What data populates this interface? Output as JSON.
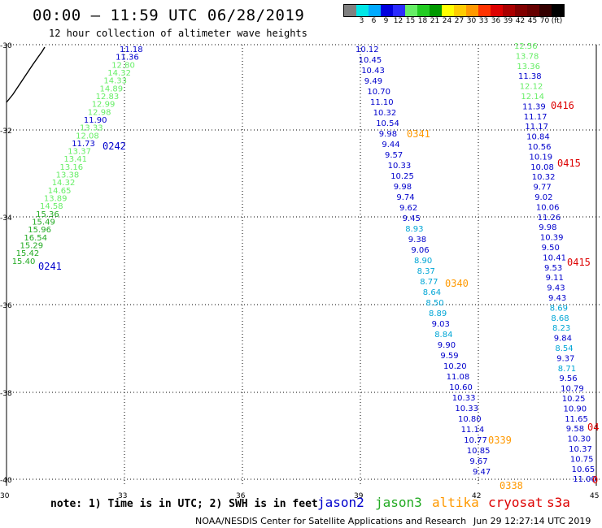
{
  "header": {
    "title": "00:00 – 11:59 UTC 06/28/2019",
    "subtitle": "12 hour collection of altimeter wave heights"
  },
  "legend": {
    "items": [
      {
        "label": "",
        "color": "#808080"
      },
      {
        "label": "3",
        "color": "#00e6e6"
      },
      {
        "label": "6",
        "color": "#00aaff"
      },
      {
        "label": "9",
        "color": "#0000dd"
      },
      {
        "label": "12",
        "color": "#2b2bff"
      },
      {
        "label": "15",
        "color": "#66ee66"
      },
      {
        "label": "18",
        "color": "#22cc22"
      },
      {
        "label": "21",
        "color": "#009900"
      },
      {
        "label": "24",
        "color": "#ffff00"
      },
      {
        "label": "27",
        "color": "#ffcc00"
      },
      {
        "label": "30",
        "color": "#ff9900"
      },
      {
        "label": "33",
        "color": "#ff3300"
      },
      {
        "label": "36",
        "color": "#dd0000"
      },
      {
        "label": "39",
        "color": "#aa0000"
      },
      {
        "label": "42",
        "color": "#800000"
      },
      {
        "label": "45",
        "color": "#660000"
      },
      {
        "label": "70",
        "color": "#330000"
      },
      {
        "label": "(ft)",
        "color": "#000000"
      }
    ]
  },
  "colors": {
    "jason2": "#0000cc",
    "jason3": "#22aa22",
    "altika": "#ff9900",
    "cryosat": "#dd0000",
    "s3a": "#dd0000",
    "light_green": "#66ee66",
    "cyan": "#00a6d6"
  },
  "axes": {
    "x_ticks": [
      "30",
      "33",
      "36",
      "39",
      "42",
      "45"
    ],
    "y_ticks": [
      "-30",
      "-32",
      "-34",
      "-36",
      "-38",
      "-40"
    ]
  },
  "footer": {
    "note": "note: 1) Time is in UTC; 2) SWH is in feet",
    "credit": "NOAA/NESDIS Center for Satellite Applications and Research",
    "timestamp": "Jun 29 12:27:14 UTC 2019"
  },
  "satellites": [
    {
      "name": "jason2",
      "color": "#0000cc"
    },
    {
      "name": "jason3",
      "color": "#22aa22"
    },
    {
      "name": "altika",
      "color": "#ff9900"
    },
    {
      "name": "cryosat",
      "color": "#dd0000"
    },
    {
      "name": "s3a",
      "color": "#dd0000"
    }
  ],
  "tracks": [
    {
      "values": [
        {
          "v": "11.18",
          "c": "#0000cc"
        },
        {
          "v": "11.36",
          "c": "#0000cc"
        },
        {
          "v": "12.80",
          "c": "#66ee66"
        },
        {
          "v": "14.32",
          "c": "#66ee66"
        },
        {
          "v": "14.33",
          "c": "#66ee66"
        },
        {
          "v": "14.89",
          "c": "#66ee66"
        },
        {
          "v": "12.83",
          "c": "#66ee66"
        },
        {
          "v": "12.99",
          "c": "#66ee66"
        },
        {
          "v": "12.98",
          "c": "#66ee66"
        },
        {
          "v": "11.90",
          "c": "#0000cc"
        },
        {
          "v": "13.33",
          "c": "#66ee66"
        },
        {
          "v": "12.08",
          "c": "#66ee66"
        },
        {
          "v": "11.73",
          "c": "#0000cc"
        },
        {
          "v": "13.37",
          "c": "#66ee66"
        },
        {
          "v": "13.41",
          "c": "#66ee66"
        },
        {
          "v": "13.16",
          "c": "#66ee66"
        },
        {
          "v": "13.38",
          "c": "#66ee66"
        },
        {
          "v": "14.32",
          "c": "#66ee66"
        },
        {
          "v": "14.65",
          "c": "#66ee66"
        },
        {
          "v": "13.89",
          "c": "#66ee66"
        },
        {
          "v": "14.58",
          "c": "#66ee66"
        },
        {
          "v": "15.36",
          "c": "#22aa22"
        },
        {
          "v": "15.49",
          "c": "#22aa22"
        },
        {
          "v": "15.96",
          "c": "#22aa22"
        },
        {
          "v": "16.54",
          "c": "#22aa22"
        },
        {
          "v": "15.29",
          "c": "#22aa22"
        },
        {
          "v": "15.42",
          "c": "#22aa22"
        },
        {
          "v": "15.40",
          "c": "#22aa22"
        }
      ]
    },
    {
      "values": [
        {
          "v": "10.12",
          "c": "#0000cc"
        },
        {
          "v": "10.45",
          "c": "#0000cc"
        },
        {
          "v": "10.43",
          "c": "#0000cc"
        },
        {
          "v": "9.49",
          "c": "#0000cc"
        },
        {
          "v": "10.70",
          "c": "#0000cc"
        },
        {
          "v": "11.10",
          "c": "#0000cc"
        },
        {
          "v": "10.32",
          "c": "#0000cc"
        },
        {
          "v": "10.54",
          "c": "#0000cc"
        },
        {
          "v": "9.98",
          "c": "#0000cc"
        },
        {
          "v": "9.44",
          "c": "#0000cc"
        },
        {
          "v": "9.57",
          "c": "#0000cc"
        },
        {
          "v": "10.33",
          "c": "#0000cc"
        },
        {
          "v": "10.25",
          "c": "#0000cc"
        },
        {
          "v": "9.98",
          "c": "#0000cc"
        },
        {
          "v": "9.74",
          "c": "#0000cc"
        },
        {
          "v": "9.62",
          "c": "#0000cc"
        },
        {
          "v": "9.45",
          "c": "#0000cc"
        },
        {
          "v": "8.93",
          "c": "#00a6d6"
        },
        {
          "v": "9.38",
          "c": "#0000cc"
        },
        {
          "v": "9.06",
          "c": "#0000cc"
        },
        {
          "v": "8.90",
          "c": "#00a6d6"
        },
        {
          "v": "8.37",
          "c": "#00a6d6"
        },
        {
          "v": "8.77",
          "c": "#00a6d6"
        },
        {
          "v": "8.64",
          "c": "#00a6d6"
        },
        {
          "v": "8.50",
          "c": "#00a6d6"
        },
        {
          "v": "8.89",
          "c": "#00a6d6"
        },
        {
          "v": "9.03",
          "c": "#0000cc"
        },
        {
          "v": "8.84",
          "c": "#00a6d6"
        },
        {
          "v": "9.90",
          "c": "#0000cc"
        },
        {
          "v": "9.59",
          "c": "#0000cc"
        },
        {
          "v": "10.20",
          "c": "#0000cc"
        },
        {
          "v": "11.08",
          "c": "#0000cc"
        },
        {
          "v": "10.60",
          "c": "#0000cc"
        },
        {
          "v": "10.33",
          "c": "#0000cc"
        },
        {
          "v": "10.33",
          "c": "#0000cc"
        },
        {
          "v": "10.80",
          "c": "#0000cc"
        },
        {
          "v": "11.14",
          "c": "#0000cc"
        },
        {
          "v": "10.77",
          "c": "#0000cc"
        },
        {
          "v": "10.85",
          "c": "#0000cc"
        },
        {
          "v": "9.67",
          "c": "#0000cc"
        },
        {
          "v": "9.47",
          "c": "#0000cc"
        }
      ]
    },
    {
      "values": [
        {
          "v": "12.56",
          "c": "#66ee66"
        },
        {
          "v": "13.78",
          "c": "#66ee66"
        },
        {
          "v": "13.36",
          "c": "#66ee66"
        },
        {
          "v": "11.38",
          "c": "#0000cc"
        },
        {
          "v": "12.12",
          "c": "#66ee66"
        },
        {
          "v": "12.14",
          "c": "#66ee66"
        },
        {
          "v": "11.39",
          "c": "#0000cc"
        },
        {
          "v": "11.17",
          "c": "#0000cc"
        },
        {
          "v": "11.17",
          "c": "#0000cc"
        },
        {
          "v": "10.84",
          "c": "#0000cc"
        },
        {
          "v": "10.56",
          "c": "#0000cc"
        },
        {
          "v": "10.19",
          "c": "#0000cc"
        },
        {
          "v": "10.08",
          "c": "#0000cc"
        },
        {
          "v": "10.32",
          "c": "#0000cc"
        },
        {
          "v": "9.77",
          "c": "#0000cc"
        },
        {
          "v": "9.02",
          "c": "#0000cc"
        },
        {
          "v": "10.06",
          "c": "#0000cc"
        },
        {
          "v": "11.26",
          "c": "#0000cc"
        },
        {
          "v": "9.98",
          "c": "#0000cc"
        },
        {
          "v": "10.39",
          "c": "#0000cc"
        },
        {
          "v": "9.50",
          "c": "#0000cc"
        },
        {
          "v": "10.41",
          "c": "#0000cc"
        },
        {
          "v": "9.53",
          "c": "#0000cc"
        },
        {
          "v": "9.11",
          "c": "#0000cc"
        },
        {
          "v": "9.43",
          "c": "#0000cc"
        },
        {
          "v": "9.43",
          "c": "#0000cc"
        },
        {
          "v": "8.69",
          "c": "#00a6d6"
        },
        {
          "v": "8.68",
          "c": "#00a6d6"
        },
        {
          "v": "8.23",
          "c": "#00a6d6"
        },
        {
          "v": "9.84",
          "c": "#0000cc"
        },
        {
          "v": "8.54",
          "c": "#00a6d6"
        },
        {
          "v": "9.37",
          "c": "#0000cc"
        },
        {
          "v": "8.71",
          "c": "#00a6d6"
        },
        {
          "v": "9.56",
          "c": "#0000cc"
        },
        {
          "v": "10.79",
          "c": "#0000cc"
        },
        {
          "v": "10.25",
          "c": "#0000cc"
        },
        {
          "v": "10.90",
          "c": "#0000cc"
        },
        {
          "v": "11.65",
          "c": "#0000cc"
        },
        {
          "v": "9.58",
          "c": "#0000cc"
        },
        {
          "v": "10.30",
          "c": "#0000cc"
        },
        {
          "v": "10.37",
          "c": "#0000cc"
        },
        {
          "v": "10.75",
          "c": "#0000cc"
        },
        {
          "v": "10.65",
          "c": "#0000cc"
        },
        {
          "v": "11.00",
          "c": "#0000cc"
        }
      ]
    }
  ],
  "time_labels": [
    {
      "t": "0242",
      "c": "#0000cc"
    },
    {
      "t": "0241",
      "c": "#0000cc"
    },
    {
      "t": "0341",
      "c": "#ff9900"
    },
    {
      "t": "0340",
      "c": "#ff9900"
    },
    {
      "t": "0339",
      "c": "#ff9900"
    },
    {
      "t": "0338",
      "c": "#ff9900"
    },
    {
      "t": "0416",
      "c": "#dd0000"
    },
    {
      "t": "0415",
      "c": "#dd0000"
    },
    {
      "t": "0415",
      "c": "#dd0000"
    },
    {
      "t": "04",
      "c": "#dd0000"
    },
    {
      "t": "0",
      "c": "#dd0000"
    }
  ]
}
